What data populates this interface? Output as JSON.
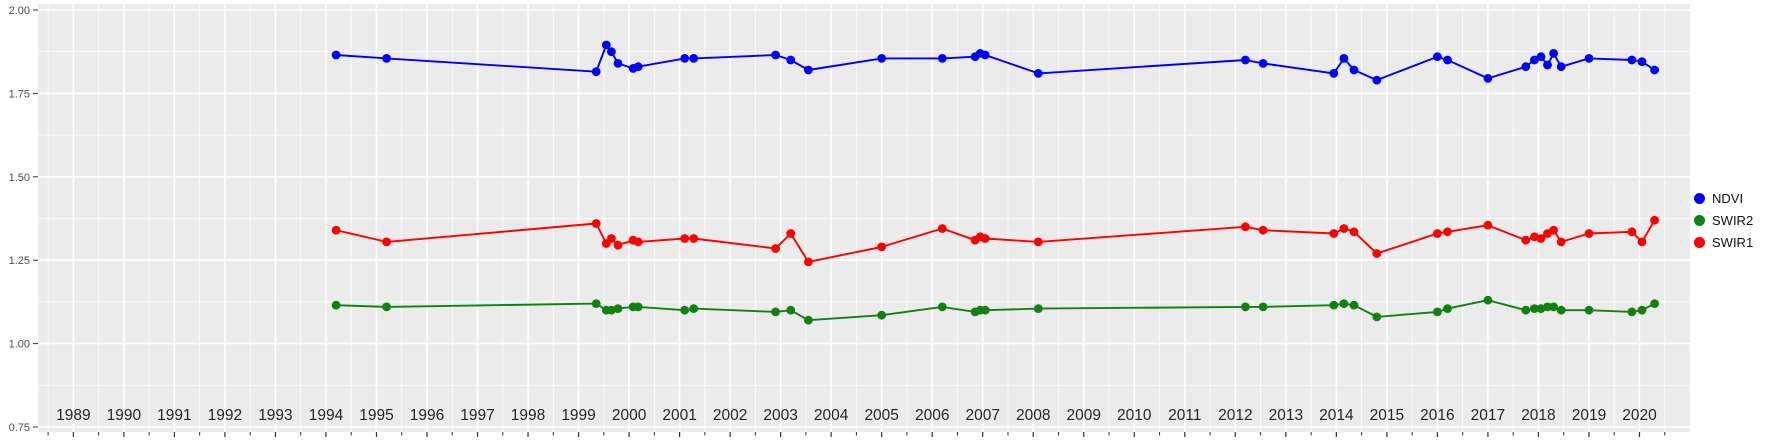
{
  "figure": {
    "background": "#FFFFFF",
    "panel_background": "#EBEBEB",
    "grid_color": "#FFFFFF",
    "axis_text_color": "#4D4D4D",
    "x_label_color": "#262626",
    "tick_color": "#333333"
  },
  "legend": {
    "items": [
      {
        "label": "NDVI",
        "color": "#0000FF"
      },
      {
        "label": "SWIR2",
        "color": "#0F820F"
      },
      {
        "label": "SWIR1",
        "color": "#FF0000"
      }
    ]
  },
  "chart_data": {
    "type": "line",
    "title": "",
    "xlabel": "",
    "ylabel": "",
    "grid": true,
    "legend_position": "right",
    "xlim": [
      1988.3,
      2021.0
    ],
    "ylim": [
      0.75,
      2.0
    ],
    "x_tick_labels": [
      "1989",
      "1990",
      "1991",
      "1992",
      "1993",
      "1994",
      "1995",
      "1996",
      "1997",
      "1998",
      "1999",
      "2000",
      "2001",
      "2002",
      "2003",
      "2004",
      "2005",
      "2006",
      "2007",
      "2008",
      "2009",
      "2010",
      "2011",
      "2012",
      "2013",
      "2014",
      "2015",
      "2016",
      "2017",
      "2018",
      "2019",
      "2020"
    ],
    "y_tick_labels": [
      "0.75",
      "1.00",
      "1.25",
      "1.50",
      "1.75",
      "2.00"
    ],
    "y_tick_values": [
      0.75,
      1.0,
      1.25,
      1.5,
      1.75,
      2.0
    ],
    "x": [
      1994.2,
      1995.2,
      1999.35,
      1999.55,
      1999.65,
      1999.78,
      2000.08,
      2000.18,
      2001.1,
      2001.28,
      2002.9,
      2003.2,
      2003.55,
      2005.0,
      2006.2,
      2006.85,
      2006.95,
      2007.05,
      2008.1,
      2012.2,
      2012.55,
      2013.95,
      2014.15,
      2014.35,
      2014.8,
      2016.0,
      2016.2,
      2017.0,
      2017.75,
      2017.92,
      2018.05,
      2018.18,
      2018.3,
      2018.45,
      2019.0,
      2019.85,
      2020.05,
      2020.3
    ],
    "series": [
      {
        "name": "NDVI",
        "color": "#0000FF",
        "values": [
          1.865,
          1.855,
          1.815,
          1.895,
          1.875,
          1.84,
          1.825,
          1.83,
          1.855,
          1.855,
          1.865,
          1.85,
          1.82,
          1.855,
          1.855,
          1.86,
          1.87,
          1.865,
          1.81,
          1.85,
          1.84,
          1.81,
          1.855,
          1.82,
          1.79,
          1.86,
          1.85,
          1.795,
          1.83,
          1.85,
          1.86,
          1.835,
          1.87,
          1.83,
          1.855,
          1.85,
          1.845,
          1.82
        ]
      },
      {
        "name": "SWIR2",
        "color": "#0F820F",
        "values": [
          1.115,
          1.11,
          1.12,
          1.1,
          1.1,
          1.105,
          1.11,
          1.11,
          1.1,
          1.105,
          1.095,
          1.1,
          1.07,
          1.085,
          1.11,
          1.095,
          1.1,
          1.1,
          1.105,
          1.11,
          1.11,
          1.115,
          1.12,
          1.115,
          1.08,
          1.095,
          1.105,
          1.13,
          1.1,
          1.105,
          1.105,
          1.11,
          1.11,
          1.1,
          1.1,
          1.095,
          1.1,
          1.12
        ]
      },
      {
        "name": "SWIR1",
        "color": "#FF0000",
        "values": [
          1.34,
          1.305,
          1.36,
          1.3,
          1.315,
          1.295,
          1.31,
          1.305,
          1.315,
          1.315,
          1.285,
          1.33,
          1.245,
          1.29,
          1.345,
          1.31,
          1.32,
          1.315,
          1.305,
          1.35,
          1.34,
          1.33,
          1.345,
          1.335,
          1.27,
          1.33,
          1.335,
          1.355,
          1.31,
          1.32,
          1.315,
          1.33,
          1.34,
          1.305,
          1.33,
          1.335,
          1.305,
          1.37
        ]
      }
    ]
  }
}
